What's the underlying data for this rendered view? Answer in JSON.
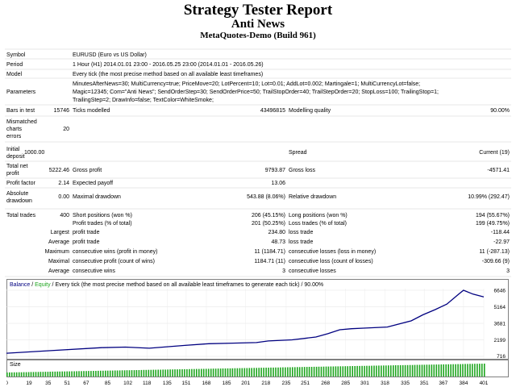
{
  "header": {
    "title": "Strategy Tester Report",
    "subtitle": "Anti News",
    "build": "MetaQuotes-Demo (Build 961)"
  },
  "info": {
    "symbol_label": "Symbol",
    "symbol_value": "EURUSD (Euro vs US Dollar)",
    "period_label": "Period",
    "period_value": "1 Hour (H1) 2014.01.01 23:00 - 2016.05.25 23:00 (2014.01.01 - 2016.05.26)",
    "model_label": "Model",
    "model_value": "Every tick (the most precise method based on all available least timeframes)",
    "parameters_label": "Parameters",
    "parameters_lines": [
      "MinutesAfterNews=30; MultiCurrency=true; PriceMove=20; LotPercent=10; Lot=0.01; AddLot=0.002; Martingale=1; MultiCurrencyLot=false;",
      "Magic=12345; Com=\"Anti News\"; SendOrderStep=30; SendOrderPrice=50; TrailStopOrder=40; TrailStepOrder=20; StopLoss=100; TrailingStop=1;",
      "TrailingStep=2; DrawInfo=false; TextColor=WhiteSmoke;"
    ]
  },
  "stats": {
    "bars_label": "Bars in test",
    "bars_value": "15746",
    "ticks_label": "Ticks modelled",
    "ticks_value": "43496815",
    "quality_label": "Modelling quality",
    "quality_value": "90.00%",
    "mismatched_label_1": "Mismatched",
    "mismatched_label_2": "charts",
    "mismatched_label_3": "errors",
    "mismatched_value": "20",
    "initial_label_1": "Initial",
    "initial_label_2": "deposit",
    "initial_value": "1000.00",
    "spread_label": "Spread",
    "spread_value": "Current (19)",
    "netprofit_label_1": "Total net",
    "netprofit_label_2": "profit",
    "netprofit_value": "5222.46",
    "grossprofit_label": "Gross profit",
    "grossprofit_value": "9793.87",
    "grossloss_label": "Gross loss",
    "grossloss_value": "-4571.41",
    "pf_label": "Profit factor",
    "pf_value": "2.14",
    "payoff_label": "Expected payoff",
    "payoff_value": "13.06",
    "absdd_label_1": "Absolute",
    "absdd_label_2": "drawdown",
    "absdd_value": "0.00",
    "maxdd_label": "Maximal drawdown",
    "maxdd_value": "543.88 (8.06%)",
    "reldd_label": "Relative drawdown",
    "reldd_value": "10.99% (292.47)",
    "trades_label": "Total trades",
    "trades_value": "400",
    "short_label": "Short positions (won %)",
    "short_value": "206 (45.15%)",
    "long_label": "Long positions (won %)",
    "long_value": "194 (55.67%)",
    "profit_trades_label": "Profit trades (% of total)",
    "profit_trades_value": "201 (50.25%)",
    "loss_trades_label": "Loss trades (% of total)",
    "loss_trades_value": "199 (49.75%)",
    "largest_label": "Largest",
    "largest_profit_label": "profit trade",
    "largest_profit_value": "234.80",
    "largest_loss_label": "loss trade",
    "largest_loss_value": "-118.44",
    "average_label": "Average",
    "average_profit_label": "profit trade",
    "average_profit_value": "48.73",
    "average_loss_label": "loss trade",
    "average_loss_value": "-22.97",
    "maximum_label": "Maximum",
    "max_wins_label": "consecutive wins (profit in money)",
    "max_wins_value": "11 (1184.71)",
    "max_losses_label": "consecutive losses (loss in money)",
    "max_losses_value": "11 (-287.13)",
    "maximal_label": "Maximal",
    "maximal_wins_label": "consecutive profit (count of wins)",
    "maximal_wins_value": "1184.71 (11)",
    "maximal_losses_label": "consecutive loss (count of losses)",
    "maximal_losses_value": "-309.66 (9)",
    "avg_cons_label": "Average",
    "avg_cons_wins_label": "consecutive wins",
    "avg_cons_wins_value": "3",
    "avg_cons_losses_label": "consecutive losses",
    "avg_cons_losses_value": "3"
  },
  "chart_data": {
    "type": "line",
    "legend": {
      "balance": "Balance",
      "sep": " / ",
      "equity": "Equity",
      "rest": " / Every tick (the most precise method based on all available least timeframes to generate each tick) / 90.00%"
    },
    "size_label": "Size",
    "colors": {
      "balance": "#000080",
      "size": "#1ea51e"
    },
    "yticks": [
      "6646",
      "5164",
      "3681",
      "2199",
      "716"
    ],
    "ylim": [
      716,
      6646
    ],
    "xticks": [
      "0",
      "19",
      "35",
      "51",
      "67",
      "85",
      "102",
      "118",
      "135",
      "151",
      "168",
      "185",
      "201",
      "218",
      "235",
      "251",
      "268",
      "285",
      "301",
      "318",
      "335",
      "351",
      "367",
      "384",
      "401"
    ],
    "xlim": [
      0,
      401
    ],
    "x": [
      0,
      40,
      80,
      100,
      120,
      150,
      170,
      190,
      210,
      220,
      240,
      260,
      270,
      280,
      290,
      300,
      320,
      340,
      350,
      360,
      370,
      380,
      384,
      392,
      401
    ],
    "balance": [
      1000,
      1250,
      1500,
      1550,
      1450,
      1700,
      1850,
      1900,
      1950,
      2100,
      2200,
      2450,
      2750,
      3100,
      3200,
      3250,
      3350,
      3900,
      4450,
      4900,
      5400,
      6300,
      6646,
      6300,
      6050
    ]
  }
}
